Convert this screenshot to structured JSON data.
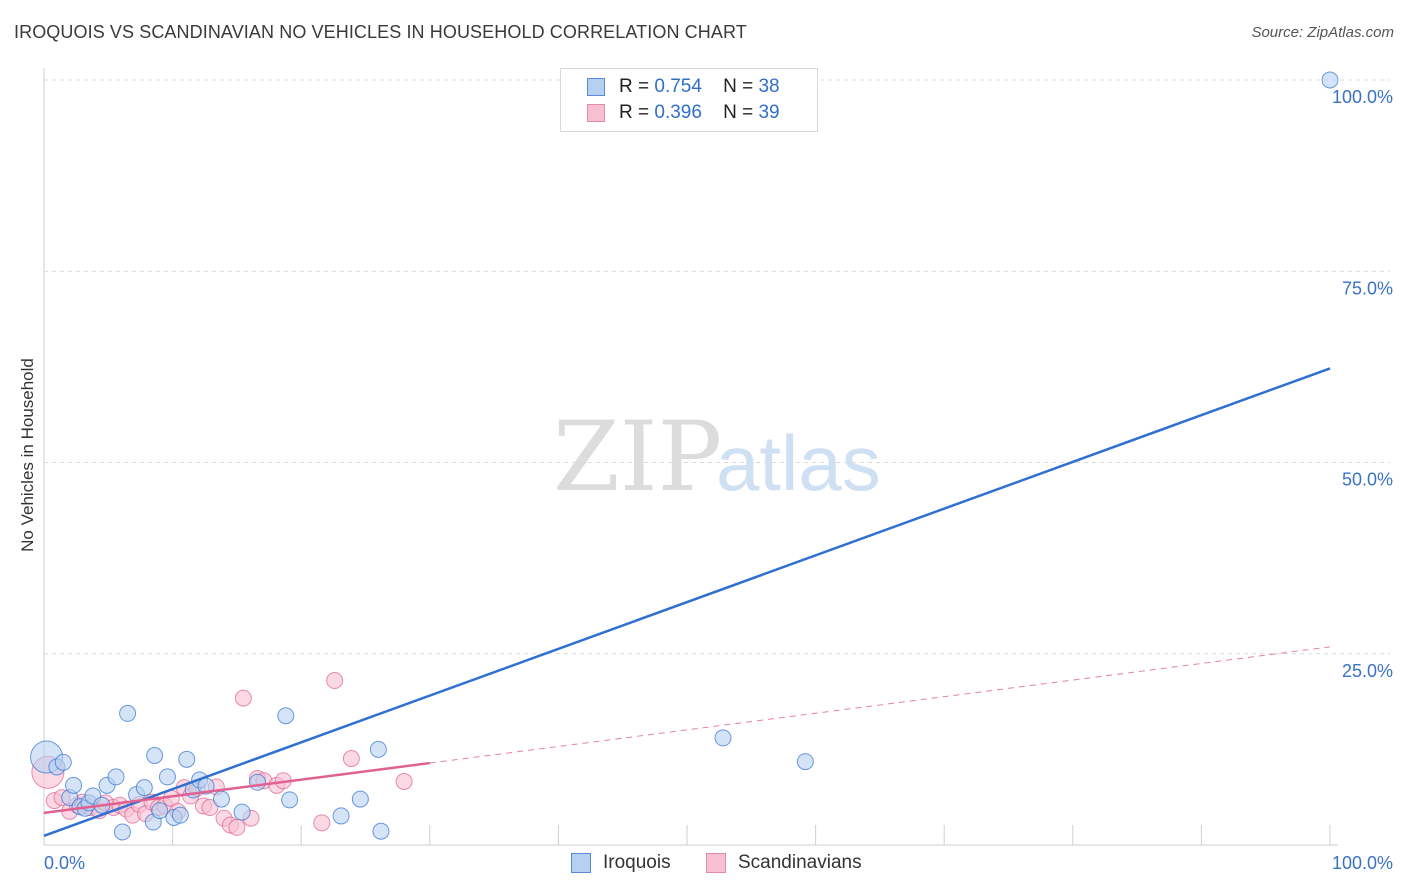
{
  "header": {
    "title": "IROQUOIS VS SCANDINAVIAN NO VEHICLES IN HOUSEHOLD CORRELATION CHART",
    "source": "Source: ZipAtlas.com"
  },
  "watermark": {
    "zip": "ZIP",
    "atlas": "atlas"
  },
  "legend": {
    "r_label": "R =",
    "n_label": "N =",
    "rows": [
      {
        "name": "Iroquois",
        "r": "0.754",
        "n": "38"
      },
      {
        "name": "Scandinavians",
        "r": "0.396",
        "n": "39"
      }
    ]
  },
  "chart_data": {
    "type": "scatter",
    "title": "IROQUOIS VS SCANDINAVIAN NO VEHICLES IN HOUSEHOLD CORRELATION CHART",
    "xlabel": "",
    "ylabel": "No Vehicles in Household",
    "xlim": [
      0,
      100
    ],
    "ylim": [
      0,
      100
    ],
    "x_tick_labels": [
      "0.0%",
      "100.0%"
    ],
    "y_ticks": [
      25,
      50,
      75,
      100
    ],
    "y_tick_labels": [
      "25.0%",
      "50.0%",
      "75.0%",
      "100.0%"
    ],
    "grid": true,
    "legend_position": "top-center",
    "colors": {
      "iroquois": "#3070d0",
      "scandinavians": "#e06090"
    },
    "series": [
      {
        "name": "Iroquois",
        "color": "#3070d0",
        "fill": "#b8d0f0",
        "regression": {
          "x": [
            0,
            100
          ],
          "y": [
            1.2,
            62.3
          ],
          "dashed_from": null
        },
        "points": [
          [
            0.2,
            11.5
          ],
          [
            1.0,
            10.2
          ],
          [
            1.5,
            10.8
          ],
          [
            2.0,
            6.2
          ],
          [
            2.3,
            7.8
          ],
          [
            2.8,
            5.0
          ],
          [
            3.2,
            4.8
          ],
          [
            3.5,
            5.5
          ],
          [
            3.8,
            6.4
          ],
          [
            4.5,
            5.2
          ],
          [
            4.9,
            7.8
          ],
          [
            5.6,
            8.9
          ],
          [
            6.1,
            1.7
          ],
          [
            6.5,
            17.2
          ],
          [
            7.2,
            6.6
          ],
          [
            7.8,
            7.5
          ],
          [
            8.5,
            3.0
          ],
          [
            8.6,
            11.7
          ],
          [
            9.6,
            8.9
          ],
          [
            10.1,
            3.6
          ],
          [
            10.6,
            3.9
          ],
          [
            11.1,
            11.2
          ],
          [
            11.6,
            7.2
          ],
          [
            12.1,
            8.5
          ],
          [
            12.6,
            7.7
          ],
          [
            13.8,
            6.0
          ],
          [
            15.4,
            4.3
          ],
          [
            16.6,
            8.2
          ],
          [
            18.8,
            16.9
          ],
          [
            19.1,
            5.9
          ],
          [
            23.1,
            3.8
          ],
          [
            24.6,
            6.0
          ],
          [
            26.0,
            12.5
          ],
          [
            26.2,
            1.8
          ],
          [
            52.8,
            14.0
          ],
          [
            59.2,
            10.9
          ],
          [
            100.0,
            100.0
          ],
          [
            9.0,
            4.5
          ]
        ]
      },
      {
        "name": "Scandinavians",
        "color": "#e06090",
        "fill": "#f6c0d2",
        "regression": {
          "x": [
            0,
            100
          ],
          "y": [
            4.2,
            25.9
          ],
          "dashed_from": 30
        },
        "points": [
          [
            0.3,
            9.5
          ],
          [
            0.8,
            5.8
          ],
          [
            1.4,
            6.2
          ],
          [
            2.0,
            4.4
          ],
          [
            2.6,
            5.2
          ],
          [
            3.0,
            5.6
          ],
          [
            3.6,
            4.9
          ],
          [
            4.3,
            4.5
          ],
          [
            4.8,
            5.5
          ],
          [
            5.4,
            4.9
          ],
          [
            5.9,
            5.2
          ],
          [
            6.4,
            4.7
          ],
          [
            6.9,
            3.9
          ],
          [
            7.4,
            5.3
          ],
          [
            7.9,
            4.1
          ],
          [
            8.4,
            5.6
          ],
          [
            8.9,
            4.9
          ],
          [
            9.4,
            5.1
          ],
          [
            9.9,
            6.1
          ],
          [
            10.4,
            4.4
          ],
          [
            10.9,
            7.5
          ],
          [
            11.4,
            6.4
          ],
          [
            11.9,
            7.4
          ],
          [
            12.4,
            5.1
          ],
          [
            12.9,
            4.9
          ],
          [
            13.4,
            7.6
          ],
          [
            14.0,
            3.5
          ],
          [
            14.5,
            2.6
          ],
          [
            15.0,
            2.3
          ],
          [
            15.5,
            19.2
          ],
          [
            16.1,
            3.5
          ],
          [
            16.6,
            8.7
          ],
          [
            17.1,
            8.4
          ],
          [
            18.1,
            7.8
          ],
          [
            18.6,
            8.4
          ],
          [
            21.6,
            2.9
          ],
          [
            22.6,
            21.5
          ],
          [
            23.9,
            11.3
          ],
          [
            28.0,
            8.3
          ]
        ]
      }
    ]
  }
}
